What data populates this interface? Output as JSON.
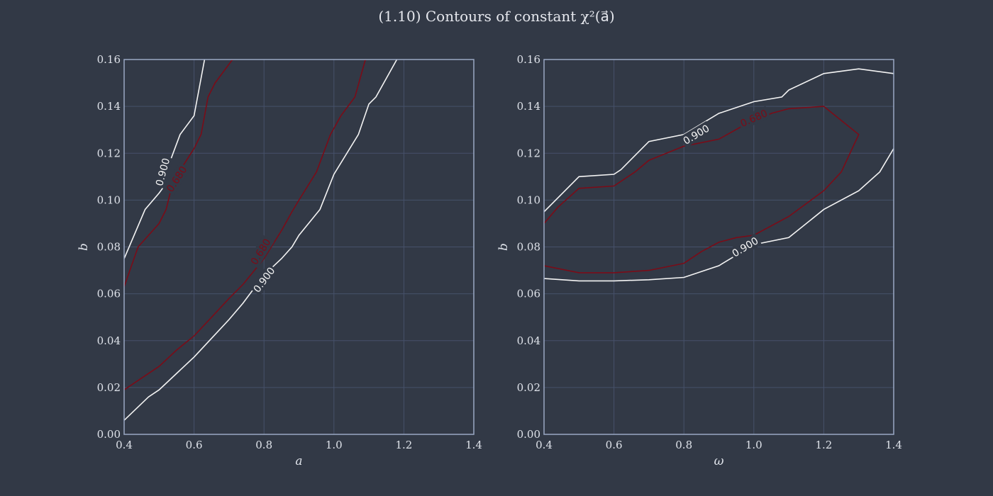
{
  "title": "(1.10) Contours of constant χ²(a⃗)",
  "colors": {
    "background": "#323946",
    "grid": "#46516a",
    "frame": "#9aa8c4",
    "text": "#dfe3ea",
    "level_0680": "#7a0c18",
    "level_0900": "#f4f4f4"
  },
  "chart_data": [
    {
      "type": "contour",
      "xlabel": "a",
      "ylabel": "b",
      "xlim": [
        0.4,
        1.4
      ],
      "ylim": [
        0.0,
        0.16
      ],
      "xticks": [
        "0.4",
        "0.6",
        "0.8",
        "1.0",
        "1.2",
        "1.4"
      ],
      "yticks": [
        "0.00",
        "0.02",
        "0.04",
        "0.06",
        "0.08",
        "0.10",
        "0.12",
        "0.14",
        "0.16"
      ],
      "grid": true,
      "series": [
        {
          "name": "0.680",
          "level": 0.68,
          "color": "#7a0c18",
          "lines": [
            [
              [
                0.4,
                0.063
              ],
              [
                0.44,
                0.08
              ],
              [
                0.5,
                0.09
              ],
              [
                0.52,
                0.096
              ],
              [
                0.54,
                0.108
              ],
              [
                0.6,
                0.122
              ],
              [
                0.62,
                0.128
              ],
              [
                0.64,
                0.144
              ],
              [
                0.66,
                0.15
              ],
              [
                0.71,
                0.16
              ]
            ],
            [
              [
                0.4,
                0.019
              ],
              [
                0.45,
                0.024
              ],
              [
                0.5,
                0.029
              ],
              [
                0.55,
                0.036
              ],
              [
                0.6,
                0.042
              ],
              [
                0.65,
                0.05
              ],
              [
                0.7,
                0.058
              ],
              [
                0.74,
                0.064
              ],
              [
                0.8,
                0.075
              ],
              [
                0.85,
                0.087
              ],
              [
                0.88,
                0.095
              ],
              [
                0.9,
                0.1
              ],
              [
                0.95,
                0.112
              ],
              [
                0.99,
                0.128
              ],
              [
                1.02,
                0.136
              ],
              [
                1.06,
                0.144
              ],
              [
                1.09,
                0.16
              ]
            ]
          ],
          "labels": [
            {
              "text": "0.680",
              "x": 0.55,
              "y": 0.109
            },
            {
              "text": "0.680",
              "x": 0.79,
              "y": 0.078
            }
          ]
        },
        {
          "name": "0.900",
          "level": 0.9,
          "color": "#f4f4f4",
          "lines": [
            [
              [
                0.4,
                0.075
              ],
              [
                0.46,
                0.096
              ],
              [
                0.5,
                0.103
              ],
              [
                0.51,
                0.105
              ],
              [
                0.53,
                0.116
              ],
              [
                0.56,
                0.128
              ],
              [
                0.6,
                0.136
              ],
              [
                0.63,
                0.16
              ]
            ],
            [
              [
                0.4,
                0.006
              ],
              [
                0.47,
                0.016
              ],
              [
                0.5,
                0.019
              ],
              [
                0.55,
                0.026
              ],
              [
                0.6,
                0.033
              ],
              [
                0.65,
                0.041
              ],
              [
                0.7,
                0.049
              ],
              [
                0.74,
                0.056
              ],
              [
                0.8,
                0.068
              ],
              [
                0.85,
                0.075
              ],
              [
                0.88,
                0.08
              ],
              [
                0.9,
                0.085
              ],
              [
                0.96,
                0.096
              ],
              [
                1.0,
                0.111
              ],
              [
                1.07,
                0.128
              ],
              [
                1.1,
                0.141
              ],
              [
                1.12,
                0.144
              ],
              [
                1.18,
                0.16
              ]
            ]
          ],
          "labels": [
            {
              "text": "0.900",
              "x": 0.51,
              "y": 0.112
            },
            {
              "text": "0.900",
              "x": 0.8,
              "y": 0.066
            }
          ]
        }
      ]
    },
    {
      "type": "contour",
      "xlabel": "ω",
      "ylabel": "b",
      "xlim": [
        0.4,
        1.4
      ],
      "ylim": [
        0.0,
        0.16
      ],
      "xticks": [
        "0.4",
        "0.6",
        "0.8",
        "1.0",
        "1.2",
        "1.4"
      ],
      "yticks": [
        "0.00",
        "0.02",
        "0.04",
        "0.06",
        "0.08",
        "0.10",
        "0.12",
        "0.14",
        "0.16"
      ],
      "grid": true,
      "series": [
        {
          "name": "0.680",
          "level": 0.68,
          "color": "#7a0c18",
          "lines": [
            [
              [
                0.4,
                0.09
              ],
              [
                0.44,
                0.097
              ],
              [
                0.5,
                0.105
              ],
              [
                0.6,
                0.106
              ],
              [
                0.66,
                0.112
              ],
              [
                0.7,
                0.117
              ],
              [
                0.8,
                0.123
              ],
              [
                0.9,
                0.126
              ],
              [
                0.96,
                0.131
              ],
              [
                1.05,
                0.137
              ],
              [
                1.1,
                0.139
              ],
              [
                1.2,
                0.14
              ],
              [
                1.3,
                0.128
              ],
              [
                1.25,
                0.112
              ],
              [
                1.2,
                0.104
              ],
              [
                1.1,
                0.093
              ],
              [
                1.0,
                0.085
              ],
              [
                0.95,
                0.084
              ],
              [
                0.9,
                0.082
              ],
              [
                0.85,
                0.078
              ],
              [
                0.8,
                0.073
              ],
              [
                0.7,
                0.07
              ],
              [
                0.6,
                0.069
              ],
              [
                0.5,
                0.069
              ],
              [
                0.4,
                0.072
              ]
            ]
          ],
          "labels": [
            {
              "text": "0.680",
              "x": 1.0,
              "y": 0.135
            }
          ]
        },
        {
          "name": "0.900",
          "level": 0.9,
          "color": "#f4f4f4",
          "lines": [
            [
              [
                0.4,
                0.095
              ],
              [
                0.5,
                0.11
              ],
              [
                0.6,
                0.111
              ],
              [
                0.62,
                0.113
              ],
              [
                0.7,
                0.125
              ],
              [
                0.8,
                0.128
              ],
              [
                0.9,
                0.137
              ],
              [
                1.0,
                0.142
              ],
              [
                1.08,
                0.144
              ],
              [
                1.1,
                0.147
              ],
              [
                1.2,
                0.154
              ],
              [
                1.3,
                0.156
              ],
              [
                1.4,
                0.154
              ]
            ],
            [
              [
                1.4,
                0.122
              ],
              [
                1.36,
                0.112
              ],
              [
                1.3,
                0.104
              ],
              [
                1.2,
                0.096
              ],
              [
                1.1,
                0.084
              ],
              [
                1.0,
                0.081
              ],
              [
                0.9,
                0.072
              ],
              [
                0.8,
                0.067
              ],
              [
                0.7,
                0.066
              ],
              [
                0.6,
                0.0655
              ],
              [
                0.5,
                0.0655
              ],
              [
                0.4,
                0.0665
              ]
            ]
          ],
          "labels": [
            {
              "text": "0.900",
              "x": 0.835,
              "y": 0.128
            },
            {
              "text": "0.900",
              "x": 0.975,
              "y": 0.08
            }
          ]
        }
      ]
    }
  ]
}
